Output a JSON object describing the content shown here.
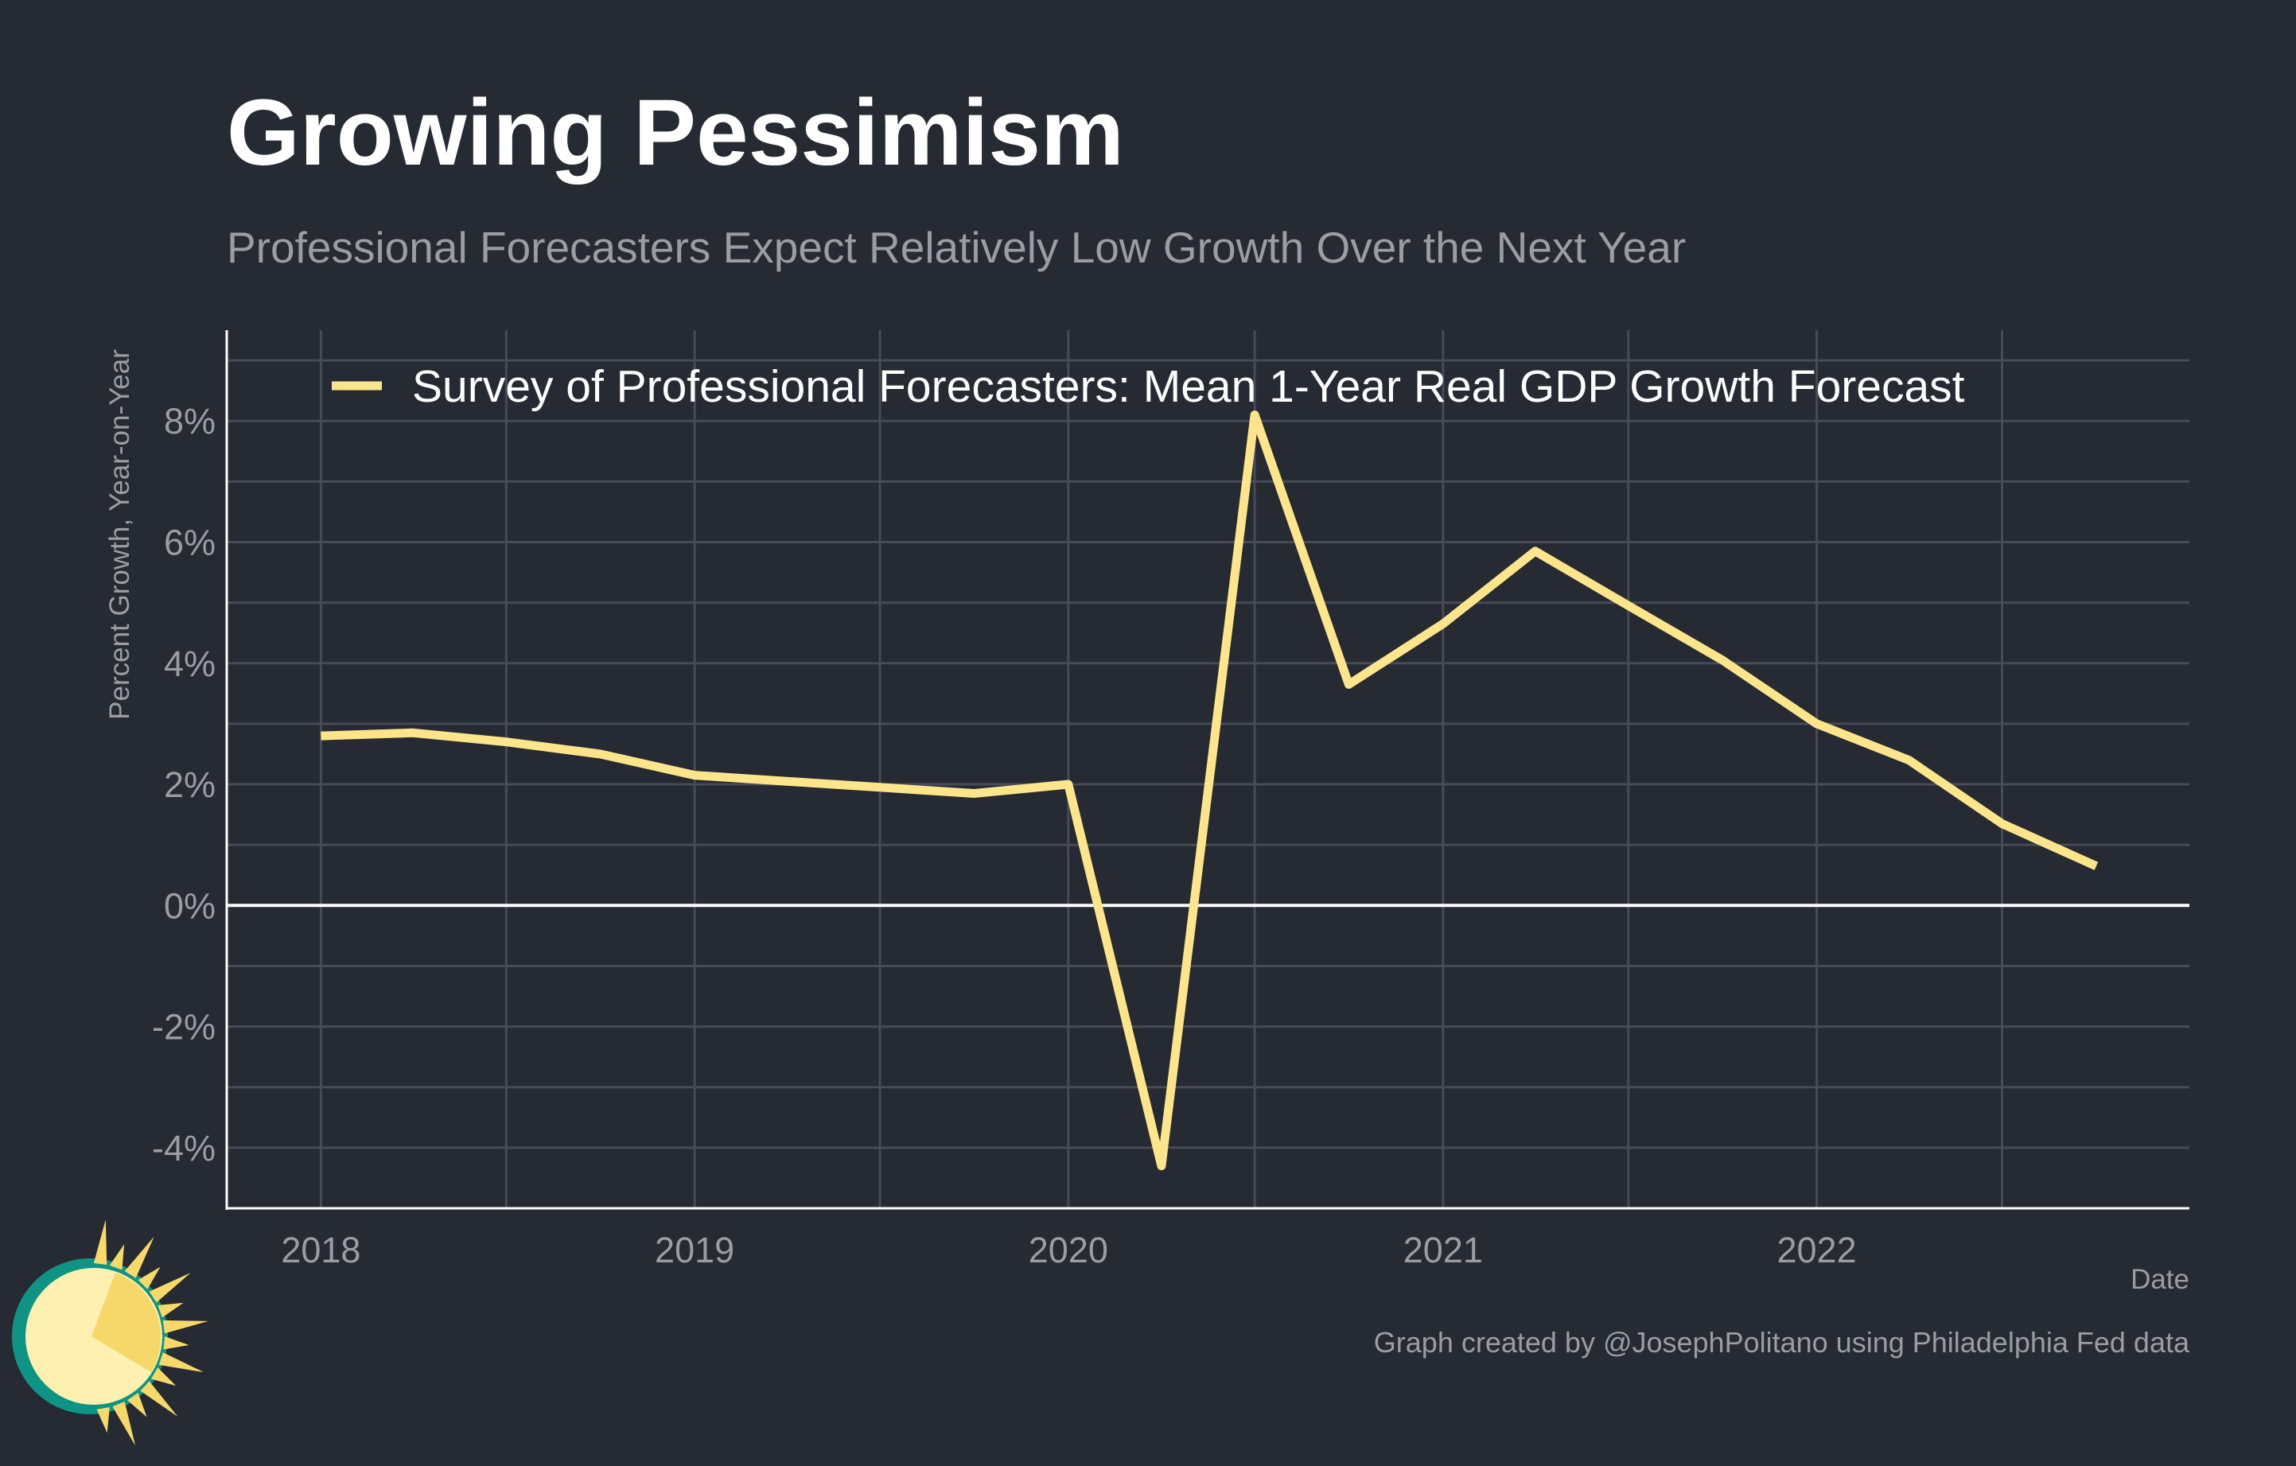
{
  "title": "Growing Pessimism",
  "subtitle": "Professional Forecasters Expect Relatively Low Growth Over the Next Year",
  "caption": "Graph created by @JosephPolitano using Philadelphia Fed data",
  "colors": {
    "background": "#252A33",
    "line": "#FEE48A",
    "grid": "#464B55",
    "text_muted": "#9A9DA3",
    "text_main": "#FFFFFF",
    "logo_teal": "#0E9384",
    "logo_yellow": "#F7D96A"
  },
  "chart_data": {
    "type": "line",
    "xlabel": "Date",
    "ylabel": "Percent Growth, Year-on-Year",
    "x_ticks": [
      "2018",
      "2019",
      "2020",
      "2021",
      "2022"
    ],
    "y_ticks": [
      "-4%",
      "-2%",
      "0%",
      "2%",
      "4%",
      "6%",
      "8%"
    ],
    "xlim": [
      "2017-10-01",
      "2022-12-31"
    ],
    "ylim": [
      -5,
      9.5
    ],
    "grid": true,
    "legend_position": "top-left",
    "series": [
      {
        "name": "Survey of Professional Forecasters: Mean 1-Year Real GDP Growth Forecast",
        "x": [
          "2018-01-01",
          "2018-04-01",
          "2018-07-01",
          "2018-10-01",
          "2019-01-01",
          "2019-04-01",
          "2019-07-01",
          "2019-10-01",
          "2020-01-01",
          "2020-04-01",
          "2020-07-01",
          "2020-10-01",
          "2021-01-01",
          "2021-04-01",
          "2021-07-01",
          "2021-10-01",
          "2022-01-01",
          "2022-04-01",
          "2022-07-01",
          "2022-10-01"
        ],
        "values": [
          2.8,
          2.85,
          2.7,
          2.5,
          2.15,
          2.05,
          1.95,
          1.85,
          2.0,
          -4.3,
          8.1,
          3.65,
          4.65,
          5.85,
          4.95,
          4.05,
          3.0,
          2.4,
          1.35,
          0.65
        ]
      }
    ]
  }
}
